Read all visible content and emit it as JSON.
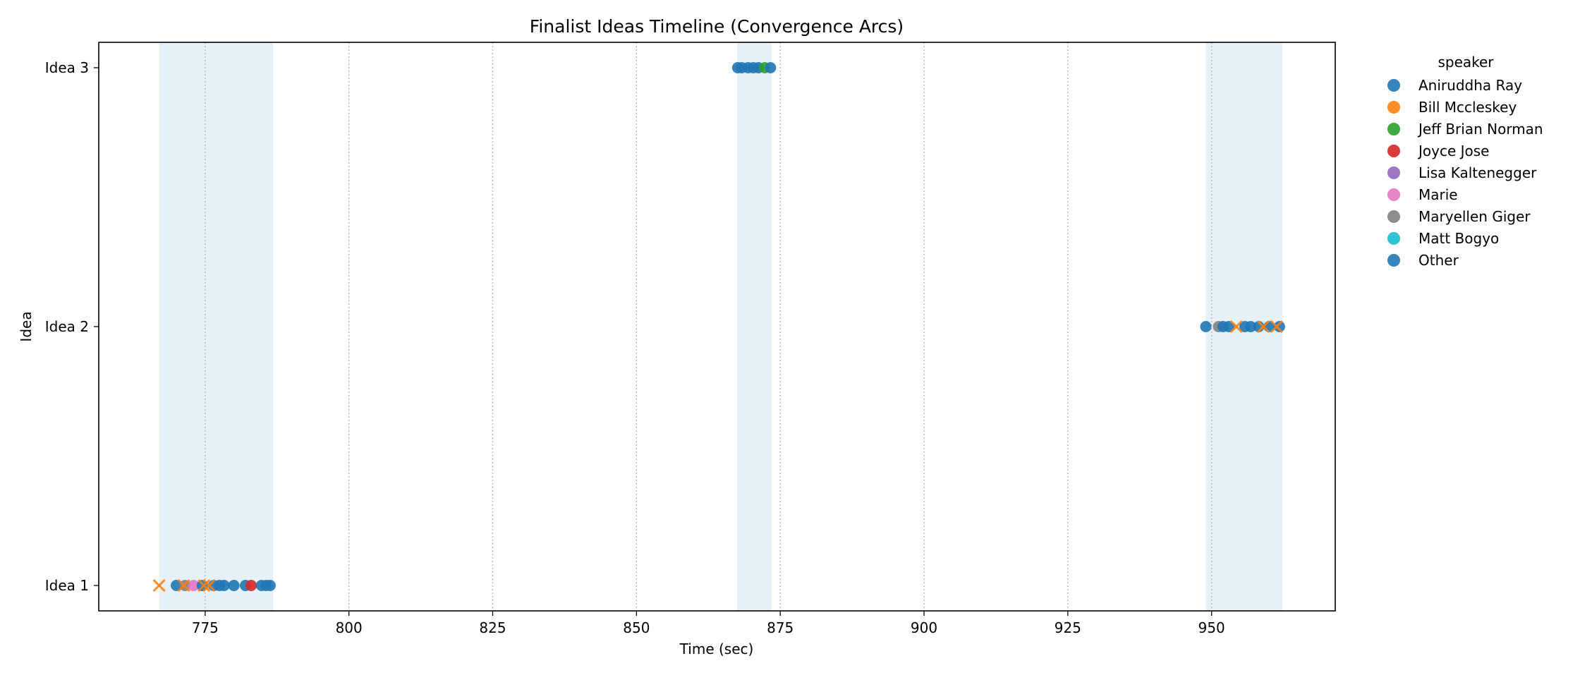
{
  "chart_data": {
    "type": "scatter",
    "title": "Finalist Ideas Timeline (Convergence Arcs)",
    "xlabel": "Time (sec)",
    "ylabel": "Idea",
    "xlim": [
      756.5,
      971.5
    ],
    "x_ticks": [
      775,
      800,
      825,
      850,
      875,
      900,
      925,
      950
    ],
    "y_categories": [
      "Idea 1",
      "Idea 2",
      "Idea 3"
    ],
    "grid": "vertical dotted at x ticks",
    "legend": {
      "title": "speaker",
      "placement": "outside right",
      "entries": [
        {
          "name": "Aniruddha Ray",
          "color": "#1f77b4"
        },
        {
          "name": "Bill Mccleskey",
          "color": "#ff7f0e"
        },
        {
          "name": "Jeff Brian Norman",
          "color": "#2ca02c"
        },
        {
          "name": "Joyce Jose",
          "color": "#d62728"
        },
        {
          "name": "Lisa Kaltenegger",
          "color": "#9467bd"
        },
        {
          "name": "Marie",
          "color": "#e377c2"
        },
        {
          "name": "Maryellen Giger",
          "color": "#7f7f7f"
        },
        {
          "name": "Matt Bogyo",
          "color": "#17becf"
        },
        {
          "name": "Other",
          "color": "#1f77b4"
        }
      ]
    },
    "convergence_spans": [
      {
        "idea": "Idea 1",
        "x": [
          767.0,
          786.8
        ]
      },
      {
        "idea": "Idea 3",
        "x": [
          867.5,
          873.5
        ]
      },
      {
        "idea": "Idea 2",
        "x": [
          949.0,
          962.3
        ]
      }
    ],
    "points": [
      {
        "x": 770.0,
        "y": "Idea 1",
        "speaker": "Other",
        "marker": "o"
      },
      {
        "x": 771.5,
        "y": "Idea 1",
        "speaker": "Maryellen Giger",
        "marker": "o"
      },
      {
        "x": 773.0,
        "y": "Idea 1",
        "speaker": "Marie",
        "marker": "o"
      },
      {
        "x": 774.5,
        "y": "Idea 1",
        "speaker": "Other",
        "marker": "o"
      },
      {
        "x": 776.5,
        "y": "Idea 1",
        "speaker": "Other",
        "marker": "o"
      },
      {
        "x": 777.5,
        "y": "Idea 1",
        "speaker": "Other",
        "marker": "o"
      },
      {
        "x": 778.3,
        "y": "Idea 1",
        "speaker": "Other",
        "marker": "o"
      },
      {
        "x": 780.0,
        "y": "Idea 1",
        "speaker": "Other",
        "marker": "o"
      },
      {
        "x": 782.0,
        "y": "Idea 1",
        "speaker": "Aniruddha Ray",
        "marker": "o"
      },
      {
        "x": 783.0,
        "y": "Idea 1",
        "speaker": "Joyce Jose",
        "marker": "o"
      },
      {
        "x": 784.8,
        "y": "Idea 1",
        "speaker": "Other",
        "marker": "o"
      },
      {
        "x": 785.6,
        "y": "Idea 1",
        "speaker": "Other",
        "marker": "o"
      },
      {
        "x": 786.3,
        "y": "Idea 1",
        "speaker": "Aniruddha Ray",
        "marker": "o"
      },
      {
        "x": 767.0,
        "y": "Idea 1",
        "speaker": "Bill Mccleskey",
        "marker": "x"
      },
      {
        "x": 771.3,
        "y": "Idea 1",
        "speaker": "Bill Mccleskey",
        "marker": "x"
      },
      {
        "x": 774.8,
        "y": "Idea 1",
        "speaker": "Bill Mccleskey",
        "marker": "x"
      },
      {
        "x": 775.7,
        "y": "Idea 1",
        "speaker": "Bill Mccleskey",
        "marker": "x"
      },
      {
        "x": 867.6,
        "y": "Idea 3",
        "speaker": "Other",
        "marker": "o"
      },
      {
        "x": 868.3,
        "y": "Idea 3",
        "speaker": "Aniruddha Ray",
        "marker": "o"
      },
      {
        "x": 869.4,
        "y": "Idea 3",
        "speaker": "Other",
        "marker": "o"
      },
      {
        "x": 870.3,
        "y": "Idea 3",
        "speaker": "Other",
        "marker": "o"
      },
      {
        "x": 871.2,
        "y": "Idea 3",
        "speaker": "Other",
        "marker": "o"
      },
      {
        "x": 872.3,
        "y": "Idea 3",
        "speaker": "Jeff Brian Norman",
        "marker": "o"
      },
      {
        "x": 873.3,
        "y": "Idea 3",
        "speaker": "Other",
        "marker": "o"
      },
      {
        "x": 949.0,
        "y": "Idea 2",
        "speaker": "Other",
        "marker": "o"
      },
      {
        "x": 951.2,
        "y": "Idea 2",
        "speaker": "Maryellen Giger",
        "marker": "o"
      },
      {
        "x": 952.0,
        "y": "Idea 2",
        "speaker": "Other",
        "marker": "o"
      },
      {
        "x": 953.0,
        "y": "Idea 2",
        "speaker": "Other",
        "marker": "o"
      },
      {
        "x": 955.8,
        "y": "Idea 2",
        "speaker": "Other",
        "marker": "o"
      },
      {
        "x": 956.8,
        "y": "Idea 2",
        "speaker": "Aniruddha Ray",
        "marker": "o"
      },
      {
        "x": 958.2,
        "y": "Idea 2",
        "speaker": "Other",
        "marker": "o"
      },
      {
        "x": 960.0,
        "y": "Idea 2",
        "speaker": "Other",
        "marker": "o"
      },
      {
        "x": 961.8,
        "y": "Idea 2",
        "speaker": "Other",
        "marker": "o"
      },
      {
        "x": 954.3,
        "y": "Idea 2",
        "speaker": "Bill Mccleskey",
        "marker": "x"
      },
      {
        "x": 959.0,
        "y": "Idea 2",
        "speaker": "Bill Mccleskey",
        "marker": "x"
      },
      {
        "x": 961.3,
        "y": "Idea 2",
        "speaker": "Bill Mccleskey",
        "marker": "x"
      }
    ]
  }
}
